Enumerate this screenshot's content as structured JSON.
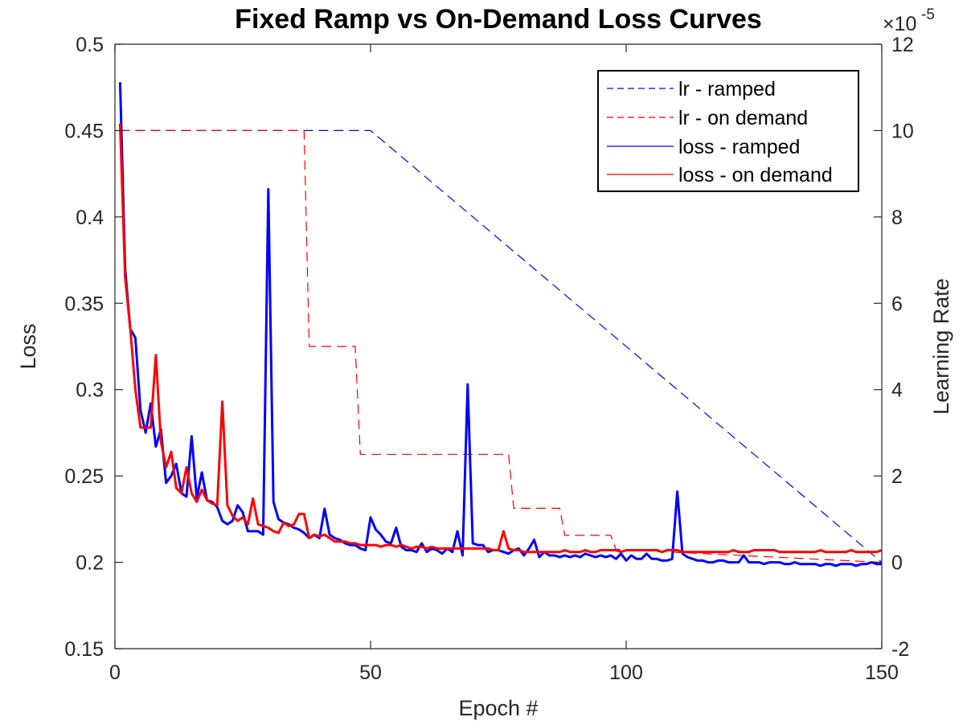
{
  "chart_data": {
    "type": "line",
    "title": "Fixed Ramp vs On-Demand Loss Curves",
    "xlabel": "Epoch #",
    "ylabel": "Loss",
    "y2label": "Learning Rate",
    "xlim": [
      0,
      150
    ],
    "ylim": [
      0.15,
      0.5
    ],
    "y2lim": [
      -2,
      12
    ],
    "y2_exponent_label": "×10",
    "y2_exponent_value": "-5",
    "xticks": [
      0,
      50,
      100,
      150
    ],
    "xtick_labels": [
      "0",
      "50",
      "100",
      "150"
    ],
    "yticks": [
      0.15,
      0.2,
      0.25,
      0.3,
      0.35,
      0.4,
      0.45,
      0.5
    ],
    "ytick_labels": [
      "0.15",
      "0.2",
      "0.25",
      "0.3",
      "0.35",
      "0.4",
      "0.45",
      "0.5"
    ],
    "y2ticks": [
      -2,
      0,
      2,
      4,
      6,
      8,
      10,
      12
    ],
    "y2tick_labels": [
      "-2",
      "0",
      "2",
      "4",
      "6",
      "8",
      "10",
      "12"
    ],
    "legend_position": "top-right",
    "series": [
      {
        "name": "lr - ramped",
        "axis": "right",
        "color": "#0000ff",
        "style": "dashed",
        "width": 1.2,
        "x": [
          1,
          50,
          150
        ],
        "y": [
          10,
          10,
          0
        ]
      },
      {
        "name": "lr - on demand",
        "axis": "right",
        "color": "#ff0000",
        "style": "dashed",
        "width": 1.2,
        "x": [
          1,
          37,
          38,
          47,
          48,
          77,
          78,
          87,
          88,
          97,
          98,
          150
        ],
        "y": [
          10,
          10,
          5,
          5,
          2.5,
          2.5,
          1.25,
          1.25,
          0.625,
          0.625,
          0.3,
          0.0
        ]
      },
      {
        "name": "loss - ramped",
        "axis": "left",
        "color": "#0000ff",
        "style": "solid",
        "width": 3,
        "x": [
          1,
          2,
          3,
          4,
          5,
          6,
          7,
          8,
          9,
          10,
          11,
          12,
          13,
          14,
          15,
          16,
          17,
          18,
          19,
          20,
          21,
          22,
          23,
          24,
          25,
          26,
          27,
          28,
          29,
          30,
          31,
          32,
          33,
          34,
          35,
          36,
          37,
          38,
          39,
          40,
          41,
          42,
          43,
          44,
          45,
          46,
          47,
          48,
          49,
          50,
          51,
          52,
          53,
          54,
          55,
          56,
          57,
          58,
          59,
          60,
          61,
          62,
          63,
          64,
          65,
          66,
          67,
          68,
          69,
          70,
          71,
          72,
          73,
          74,
          75,
          76,
          77,
          78,
          79,
          80,
          81,
          82,
          83,
          84,
          85,
          86,
          87,
          88,
          89,
          90,
          91,
          92,
          93,
          94,
          95,
          96,
          97,
          98,
          99,
          100,
          101,
          102,
          103,
          104,
          105,
          106,
          107,
          108,
          109,
          110,
          111,
          112,
          113,
          114,
          115,
          116,
          117,
          118,
          119,
          120,
          121,
          122,
          123,
          124,
          125,
          126,
          127,
          128,
          129,
          130,
          131,
          132,
          133,
          134,
          135,
          136,
          137,
          138,
          139,
          140,
          141,
          142,
          143,
          144,
          145,
          146,
          147,
          148,
          149,
          150
        ],
        "y": [
          0.478,
          0.37,
          0.335,
          0.33,
          0.288,
          0.275,
          0.292,
          0.267,
          0.277,
          0.246,
          0.25,
          0.257,
          0.24,
          0.238,
          0.273,
          0.237,
          0.252,
          0.236,
          0.235,
          0.232,
          0.224,
          0.222,
          0.224,
          0.233,
          0.229,
          0.218,
          0.218,
          0.218,
          0.216,
          0.416,
          0.235,
          0.225,
          0.223,
          0.222,
          0.22,
          0.219,
          0.217,
          0.214,
          0.216,
          0.214,
          0.231,
          0.216,
          0.214,
          0.213,
          0.211,
          0.21,
          0.21,
          0.208,
          0.207,
          0.226,
          0.219,
          0.216,
          0.212,
          0.211,
          0.22,
          0.209,
          0.207,
          0.207,
          0.206,
          0.211,
          0.206,
          0.208,
          0.207,
          0.205,
          0.208,
          0.206,
          0.218,
          0.204,
          0.303,
          0.211,
          0.21,
          0.21,
          0.206,
          0.207,
          0.207,
          0.206,
          0.205,
          0.207,
          0.208,
          0.204,
          0.208,
          0.213,
          0.203,
          0.206,
          0.204,
          0.204,
          0.203,
          0.204,
          0.203,
          0.204,
          0.203,
          0.205,
          0.204,
          0.203,
          0.204,
          0.203,
          0.204,
          0.202,
          0.205,
          0.201,
          0.204,
          0.202,
          0.202,
          0.205,
          0.202,
          0.202,
          0.201,
          0.201,
          0.202,
          0.241,
          0.205,
          0.203,
          0.202,
          0.201,
          0.201,
          0.2,
          0.2,
          0.201,
          0.201,
          0.2,
          0.2,
          0.2,
          0.204,
          0.2,
          0.2,
          0.2,
          0.199,
          0.2,
          0.2,
          0.2,
          0.199,
          0.199,
          0.2,
          0.199,
          0.199,
          0.199,
          0.199,
          0.198,
          0.199,
          0.199,
          0.198,
          0.199,
          0.199,
          0.199,
          0.198,
          0.199,
          0.199,
          0.2,
          0.199,
          0.199
        ]
      },
      {
        "name": "loss - on demand",
        "axis": "left",
        "color": "#ff0000",
        "style": "solid",
        "width": 3,
        "x": [
          1,
          2,
          3,
          4,
          5,
          6,
          7,
          8,
          9,
          10,
          11,
          12,
          13,
          14,
          15,
          16,
          17,
          18,
          19,
          20,
          21,
          22,
          23,
          24,
          25,
          26,
          27,
          28,
          29,
          30,
          31,
          32,
          33,
          34,
          35,
          36,
          37,
          38,
          39,
          40,
          41,
          42,
          43,
          44,
          45,
          46,
          47,
          48,
          49,
          50,
          51,
          52,
          53,
          54,
          55,
          56,
          57,
          58,
          59,
          60,
          61,
          62,
          63,
          64,
          65,
          66,
          67,
          68,
          69,
          70,
          71,
          72,
          73,
          74,
          75,
          76,
          77,
          78,
          79,
          80,
          81,
          82,
          83,
          84,
          85,
          86,
          87,
          88,
          89,
          90,
          91,
          92,
          93,
          94,
          95,
          96,
          97,
          98,
          99,
          100,
          101,
          102,
          103,
          104,
          105,
          106,
          107,
          108,
          109,
          110,
          111,
          112,
          113,
          114,
          115,
          116,
          117,
          118,
          119,
          120,
          121,
          122,
          123,
          124,
          125,
          126,
          127,
          128,
          129,
          130,
          131,
          132,
          133,
          134,
          135,
          136,
          137,
          138,
          139,
          140,
          141,
          142,
          143,
          144,
          145,
          146,
          147,
          148,
          149,
          150
        ],
        "y": [
          0.454,
          0.365,
          0.335,
          0.3,
          0.278,
          0.278,
          0.278,
          0.32,
          0.27,
          0.255,
          0.264,
          0.243,
          0.24,
          0.255,
          0.24,
          0.235,
          0.242,
          0.236,
          0.234,
          0.233,
          0.293,
          0.233,
          0.227,
          0.224,
          0.226,
          0.222,
          0.237,
          0.222,
          0.221,
          0.22,
          0.218,
          0.217,
          0.223,
          0.221,
          0.222,
          0.228,
          0.228,
          0.214,
          0.216,
          0.215,
          0.216,
          0.214,
          0.212,
          0.212,
          0.212,
          0.211,
          0.211,
          0.21,
          0.21,
          0.21,
          0.21,
          0.209,
          0.21,
          0.21,
          0.209,
          0.21,
          0.209,
          0.208,
          0.209,
          0.209,
          0.208,
          0.209,
          0.208,
          0.208,
          0.208,
          0.208,
          0.208,
          0.208,
          0.208,
          0.208,
          0.208,
          0.208,
          0.208,
          0.207,
          0.207,
          0.218,
          0.208,
          0.207,
          0.207,
          0.206,
          0.206,
          0.206,
          0.206,
          0.206,
          0.206,
          0.206,
          0.206,
          0.207,
          0.206,
          0.206,
          0.206,
          0.207,
          0.206,
          0.206,
          0.207,
          0.207,
          0.207,
          0.207,
          0.206,
          0.207,
          0.207,
          0.207,
          0.207,
          0.207,
          0.207,
          0.207,
          0.206,
          0.207,
          0.207,
          0.207,
          0.206,
          0.206,
          0.206,
          0.206,
          0.206,
          0.206,
          0.206,
          0.206,
          0.206,
          0.206,
          0.207,
          0.206,
          0.206,
          0.206,
          0.207,
          0.207,
          0.207,
          0.207,
          0.207,
          0.206,
          0.206,
          0.206,
          0.206,
          0.206,
          0.206,
          0.206,
          0.206,
          0.207,
          0.206,
          0.206,
          0.206,
          0.206,
          0.206,
          0.207,
          0.206,
          0.206,
          0.206,
          0.206,
          0.206,
          0.207
        ]
      }
    ]
  }
}
